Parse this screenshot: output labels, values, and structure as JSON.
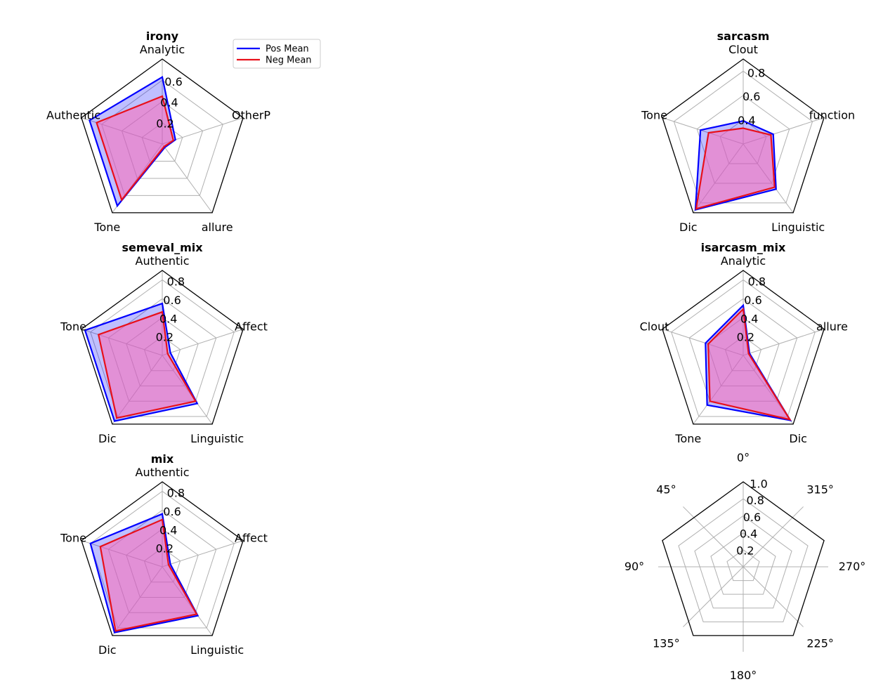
{
  "colors": {
    "pos": "#0000ff",
    "neg": "#e8101a",
    "pos_fill": "#0000ff",
    "neg_fill": "#ff69b4",
    "grid": "#b0b0b0",
    "frame": "#000000"
  },
  "legend": {
    "entries": [
      {
        "label": "Pos Mean",
        "color": "#0000ff"
      },
      {
        "label": "Neg Mean",
        "color": "#e8101a"
      }
    ],
    "placement": "right of irony chart"
  },
  "chart_data": [
    {
      "type": "radar",
      "title": "irony",
      "categories": [
        "Analytic",
        "OtherP",
        "allure",
        "Tone",
        "Authentic"
      ],
      "rlim": [
        0,
        0.8
      ],
      "rticks": [
        0.2,
        0.4,
        0.6
      ],
      "rtick_labels": [
        "0.2",
        "0.4",
        "0.6"
      ],
      "series": [
        {
          "name": "Pos Mean",
          "values": [
            0.63,
            0.13,
            0.04,
            0.72,
            0.72
          ]
        },
        {
          "name": "Neg Mean",
          "values": [
            0.45,
            0.11,
            0.03,
            0.65,
            0.65
          ]
        }
      ],
      "show_legend": true
    },
    {
      "type": "radar",
      "title": "sarcasm",
      "categories": [
        "Clout",
        "function",
        "Linguistic",
        "Dic",
        "Tone"
      ],
      "rlim": [
        0.2,
        0.9
      ],
      "rticks": [
        0.4,
        0.6,
        0.8
      ],
      "rtick_labels": [
        "0.4",
        "0.6",
        "0.8"
      ],
      "series": [
        {
          "name": "Pos Mean",
          "values": [
            0.39,
            0.46,
            0.66,
            0.87,
            0.57
          ]
        },
        {
          "name": "Neg Mean",
          "values": [
            0.33,
            0.44,
            0.64,
            0.86,
            0.5
          ]
        }
      ]
    },
    {
      "type": "radar",
      "title": "semeval_mix",
      "categories": [
        "Authentic",
        "Affect",
        "Linguistic",
        "Dic",
        "Tone"
      ],
      "rlim": [
        0,
        0.9
      ],
      "rticks": [
        0.2,
        0.4,
        0.6,
        0.8
      ],
      "rtick_labels": [
        "0.2",
        "0.4",
        "0.6",
        "0.8"
      ],
      "series": [
        {
          "name": "Pos Mean",
          "values": [
            0.55,
            0.09,
            0.63,
            0.86,
            0.86
          ]
        },
        {
          "name": "Neg Mean",
          "values": [
            0.46,
            0.06,
            0.6,
            0.82,
            0.71
          ]
        }
      ]
    },
    {
      "type": "radar",
      "title": "isarcasm_mix",
      "categories": [
        "Analytic",
        "allure",
        "Dic",
        "Tone",
        "Clout"
      ],
      "rlim": [
        0,
        0.9
      ],
      "rticks": [
        0.2,
        0.4,
        0.6,
        0.8
      ],
      "rtick_labels": [
        "0.2",
        "0.4",
        "0.6",
        "0.8"
      ],
      "series": [
        {
          "name": "Pos Mean",
          "values": [
            0.53,
            0.07,
            0.85,
            0.65,
            0.42
          ]
        },
        {
          "name": "Neg Mean",
          "values": [
            0.49,
            0.06,
            0.84,
            0.6,
            0.39
          ]
        }
      ]
    },
    {
      "type": "radar",
      "title": "mix",
      "categories": [
        "Authentic",
        "Affect",
        "Linguistic",
        "Dic",
        "Tone"
      ],
      "rlim": [
        0,
        0.9
      ],
      "rticks": [
        0.2,
        0.4,
        0.6,
        0.8
      ],
      "rtick_labels": [
        "0.2",
        "0.4",
        "0.6",
        "0.8"
      ],
      "series": [
        {
          "name": "Pos Mean",
          "values": [
            0.56,
            0.09,
            0.64,
            0.86,
            0.8
          ]
        },
        {
          "name": "Neg Mean",
          "values": [
            0.5,
            0.07,
            0.62,
            0.84,
            0.69
          ]
        }
      ]
    },
    {
      "type": "radar",
      "title": "",
      "categories": [
        "0°",
        "315°",
        "270°",
        "225°",
        "180°",
        "135°",
        "90°",
        "45°"
      ],
      "rlim": [
        0,
        1.0
      ],
      "rticks": [
        0.2,
        0.4,
        0.6,
        0.8,
        1.0
      ],
      "rtick_labels": [
        "0.2",
        "0.4",
        "0.6",
        "0.8",
        "1.0"
      ],
      "series": []
    }
  ]
}
